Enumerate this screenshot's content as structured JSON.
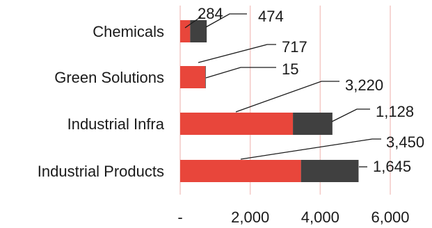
{
  "chart_data": {
    "type": "bar",
    "orientation": "horizontal",
    "stacked": true,
    "categories": [
      "Chemicals",
      "Green Solutions",
      "Industrial Infra",
      "Industrial Products"
    ],
    "series": [
      {
        "color": "#e8463b",
        "values": [
          284,
          717,
          3220,
          3450
        ],
        "labels": [
          "284",
          "717",
          "3,220",
          "3,450"
        ]
      },
      {
        "color": "#404040",
        "values": [
          474,
          15,
          1128,
          1645
        ],
        "labels": [
          "474",
          "15",
          "1,128",
          "1,645"
        ]
      }
    ],
    "xlim": [
      0,
      6000
    ],
    "xticks": [
      0,
      2000,
      4000,
      6000
    ],
    "xtick_labels": [
      "-",
      "2,000",
      "4,000",
      "6,000"
    ],
    "grid": true,
    "legend": "none"
  }
}
